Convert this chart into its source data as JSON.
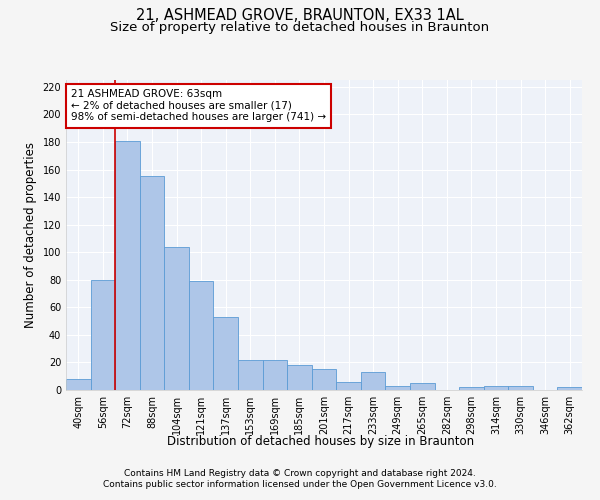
{
  "title_line1": "21, ASHMEAD GROVE, BRAUNTON, EX33 1AL",
  "title_line2": "Size of property relative to detached houses in Braunton",
  "xlabel": "Distribution of detached houses by size in Braunton",
  "ylabel": "Number of detached properties",
  "categories": [
    "40sqm",
    "56sqm",
    "72sqm",
    "88sqm",
    "104sqm",
    "121sqm",
    "137sqm",
    "153sqm",
    "169sqm",
    "185sqm",
    "201sqm",
    "217sqm",
    "233sqm",
    "249sqm",
    "265sqm",
    "282sqm",
    "298sqm",
    "314sqm",
    "330sqm",
    "346sqm",
    "362sqm"
  ],
  "values": [
    8,
    80,
    181,
    155,
    104,
    79,
    53,
    22,
    22,
    18,
    15,
    6,
    13,
    3,
    5,
    0,
    2,
    3,
    3,
    0,
    2
  ],
  "bar_color": "#aec6e8",
  "bar_edgecolor": "#5b9bd5",
  "vline_color": "#cc0000",
  "vline_x": 1.5,
  "annotation_text": "21 ASHMEAD GROVE: 63sqm\n← 2% of detached houses are smaller (17)\n98% of semi-detached houses are larger (741) →",
  "annotation_box_color": "#ffffff",
  "annotation_box_edgecolor": "#cc0000",
  "ylim": [
    0,
    225
  ],
  "yticks": [
    0,
    20,
    40,
    60,
    80,
    100,
    120,
    140,
    160,
    180,
    200,
    220
  ],
  "background_color": "#eef2f9",
  "grid_color": "#ffffff",
  "footer_line1": "Contains HM Land Registry data © Crown copyright and database right 2024.",
  "footer_line2": "Contains public sector information licensed under the Open Government Licence v3.0.",
  "title_fontsize": 10.5,
  "subtitle_fontsize": 9.5,
  "axis_label_fontsize": 8.5,
  "tick_fontsize": 7,
  "annotation_fontsize": 7.5,
  "footer_fontsize": 6.5
}
